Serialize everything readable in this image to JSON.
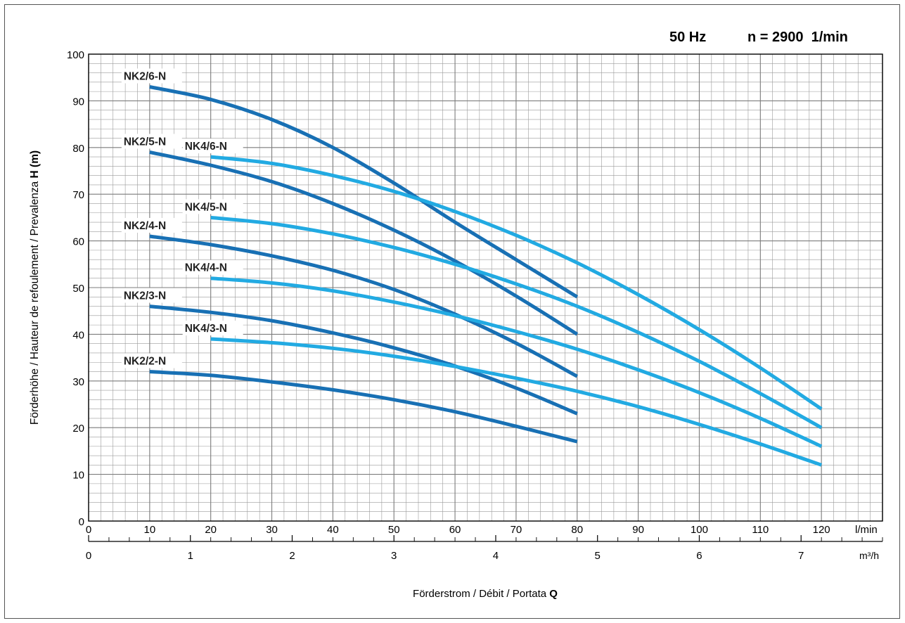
{
  "chart_data": {
    "type": "line",
    "header": {
      "frequency": "50 Hz",
      "speed": "n = 2900  1/min"
    },
    "ylabel": "Förderhöhe / Hauteur de refoulement / Prevalenza",
    "ylabel_symbol": "H (m)",
    "xlabel": "Förderstrom / Débit / Portata",
    "xlabel_symbol": "Q",
    "x_unit_lmin": "l/min",
    "x_unit_m3h": "m³/h",
    "ylim": [
      0,
      100
    ],
    "xlim": [
      0,
      130
    ],
    "y_ticks": [
      0,
      10,
      20,
      30,
      40,
      50,
      60,
      70,
      80,
      90,
      100
    ],
    "x_ticks_lmin": [
      0,
      10,
      20,
      30,
      40,
      50,
      60,
      70,
      80,
      90,
      100,
      110,
      120
    ],
    "x_ticks_m3h": [
      0,
      1,
      2,
      3,
      4,
      5,
      6,
      7
    ],
    "grid": true,
    "colors": {
      "nk2": "#1870b4",
      "nk4": "#22aae2",
      "grid": "#9a9a9a"
    },
    "series": [
      {
        "name": "NK2/6-N",
        "color_key": "nk2",
        "x": [
          10,
          20,
          30,
          40,
          50,
          60,
          70,
          80
        ],
        "y": [
          93,
          90.3,
          86,
          80,
          72.4,
          64,
          56,
          48
        ]
      },
      {
        "name": "NK2/5-N",
        "color_key": "nk2",
        "x": [
          10,
          20,
          30,
          40,
          50,
          60,
          70,
          80
        ],
        "y": [
          79,
          76.2,
          72.7,
          68,
          62.3,
          55.7,
          48.2,
          40
        ]
      },
      {
        "name": "NK2/4-N",
        "color_key": "nk2",
        "x": [
          10,
          20,
          30,
          40,
          50,
          60,
          70,
          80
        ],
        "y": [
          61,
          59.2,
          56.8,
          53.7,
          49.6,
          44.3,
          38.1,
          31
        ]
      },
      {
        "name": "NK2/3-N",
        "color_key": "nk2",
        "x": [
          10,
          20,
          30,
          40,
          50,
          60,
          70,
          80
        ],
        "y": [
          46,
          44.7,
          42.9,
          40.3,
          37.1,
          33.2,
          28.5,
          23
        ]
      },
      {
        "name": "NK2/2-N",
        "color_key": "nk2",
        "x": [
          10,
          20,
          30,
          40,
          50,
          60,
          70,
          80
        ],
        "y": [
          32,
          31.2,
          29.8,
          28.1,
          26,
          23.4,
          20.3,
          17
        ]
      },
      {
        "name": "NK4/6-N",
        "color_key": "nk4",
        "x": [
          20,
          30,
          40,
          50,
          60,
          70,
          80,
          90,
          100,
          110,
          120
        ],
        "y": [
          78,
          76.6,
          74,
          70.6,
          66.3,
          61.2,
          55.3,
          48.5,
          41,
          32.8,
          24
        ]
      },
      {
        "name": "NK4/5-N",
        "color_key": "nk4",
        "x": [
          20,
          30,
          40,
          50,
          60,
          70,
          80,
          90,
          100,
          110,
          120
        ],
        "y": [
          65,
          63.7,
          61.5,
          58.6,
          55,
          50.8,
          46,
          40.4,
          34.2,
          27.3,
          20
        ]
      },
      {
        "name": "NK4/4-N",
        "color_key": "nk4",
        "x": [
          20,
          30,
          40,
          50,
          60,
          70,
          80,
          90,
          100,
          110,
          120
        ],
        "y": [
          52,
          51,
          49.3,
          46.9,
          44,
          40.6,
          36.8,
          32.4,
          27.5,
          22,
          16
        ]
      },
      {
        "name": "NK4/3-N",
        "color_key": "nk4",
        "x": [
          20,
          30,
          40,
          50,
          60,
          70,
          80,
          90,
          100,
          110,
          120
        ],
        "y": [
          39,
          38.2,
          37,
          35.3,
          33.1,
          30.6,
          27.8,
          24.5,
          20.7,
          16.5,
          12
        ]
      }
    ]
  }
}
